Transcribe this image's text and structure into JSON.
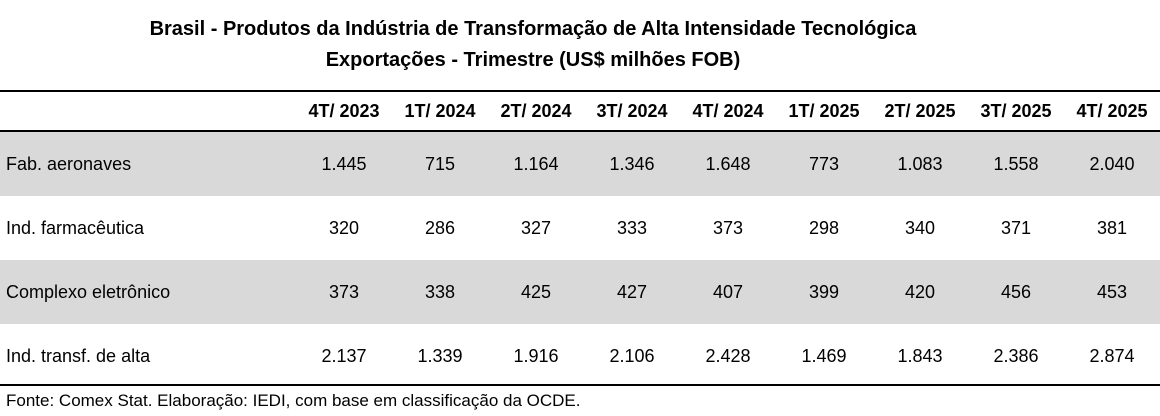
{
  "chart_data": {
    "type": "table",
    "title": "Brasil - Produtos da Indústria de Transformação de Alta Intensidade Tecnológica",
    "subtitle": "Exportações - Trimestre (US$ milhões FOB)",
    "columns": [
      "4T/ 2023",
      "1T/ 2024",
      "2T/ 2024",
      "3T/ 2024",
      "4T/ 2024",
      "1T/ 2025",
      "2T/ 2025",
      "3T/ 2025",
      "4T/ 2025"
    ],
    "rows": [
      {
        "label": "Fab. aeronaves",
        "values": [
          "1.445",
          "715",
          "1.164",
          "1.346",
          "1.648",
          "773",
          "1.083",
          "1.558",
          "2.040"
        ]
      },
      {
        "label": "Ind. farmacêutica",
        "values": [
          "320",
          "286",
          "327",
          "333",
          "373",
          "298",
          "340",
          "371",
          "381"
        ]
      },
      {
        "label": "Complexo eletrônico",
        "values": [
          "373",
          "338",
          "425",
          "427",
          "407",
          "399",
          "420",
          "456",
          "453"
        ]
      },
      {
        "label": "Ind. transf. de alta",
        "values": [
          "2.137",
          "1.339",
          "1.916",
          "2.106",
          "2.428",
          "1.469",
          "1.843",
          "2.386",
          "2.874"
        ]
      }
    ],
    "source": "Fonte: Comex Stat. Elaboração: IEDI, com base em classificação da OCDE."
  },
  "colors": {
    "row_shade": "#d9d9d9",
    "border": "#000000",
    "text": "#000000"
  }
}
